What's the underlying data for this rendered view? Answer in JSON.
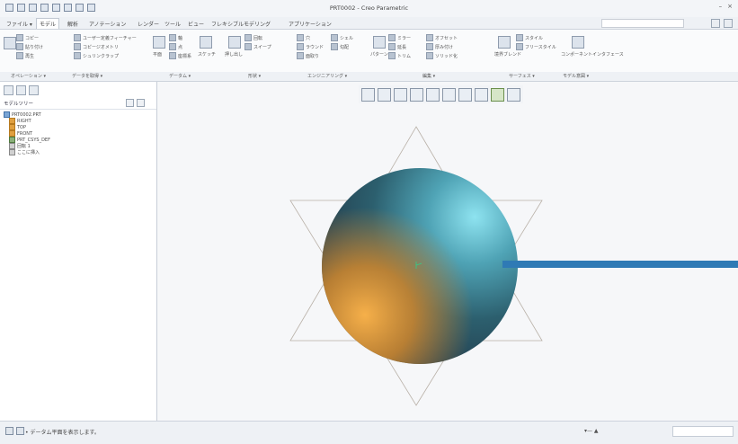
{
  "window": {
    "title": "PRT0002 - Creo Parametric",
    "controls": [
      "–",
      "×"
    ]
  },
  "ribbon_tabs": [
    "ファイル ▾",
    "モデル",
    "解析",
    "アノテーション",
    "レンダー",
    "ツール",
    "ビュー",
    "フレキシブルモデリング",
    "アプリケーション"
  ],
  "active_tab_index": 1,
  "ribbon_buttons": [
    "コピー",
    "貼り付け",
    "再生",
    "ユーザー定義フィーチャー",
    "コピージオメトリ",
    "シュリンクラップ",
    "平面",
    "軸",
    "点",
    "座標系",
    "スケッチ",
    "押し出し",
    "回転",
    "スイープ",
    "穴",
    "ラウンド",
    "面取り",
    "シェル",
    "勾配",
    "パターン",
    "ミラー",
    "延長",
    "トリム",
    "オフセット",
    "厚み付け",
    "ソリッド化",
    "境界ブレンド",
    "スタイル",
    "フリースタイル",
    "コンポーネントインタフェース"
  ],
  "ribbon_groups": [
    "オペレーション ▾",
    "データを取得 ▾",
    "データム ▾",
    "形状 ▾",
    "エンジニアリング ▾",
    "編集 ▾",
    "サーフェス ▾",
    "モデル意図 ▾"
  ],
  "model_tree": {
    "title": "モデルツリー",
    "items": [
      {
        "label": "PRT0002.PRT",
        "kind": "root"
      },
      {
        "label": "RIGHT",
        "kind": "datum"
      },
      {
        "label": "TOP",
        "kind": "datum"
      },
      {
        "label": "FRONT",
        "kind": "datum"
      },
      {
        "label": "PRT_CSYS_DEF",
        "kind": "csys"
      },
      {
        "label": "回転 1",
        "kind": "feature"
      },
      {
        "label": "ここに挿入",
        "kind": "insert"
      }
    ]
  },
  "status": {
    "message": "• データム平面を表示します。",
    "right_text": "▾— ▲"
  },
  "colors": {
    "callout_bar": "#2f7ab5"
  }
}
